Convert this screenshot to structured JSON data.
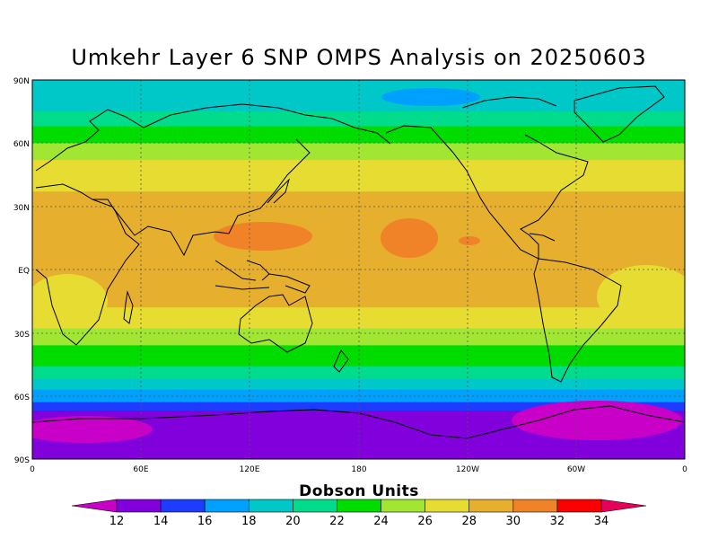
{
  "title": "Umkehr Layer 6 SNP OMPS Analysis on 20250603",
  "colorbar": {
    "title": "Dobson Units",
    "levels": [
      "12",
      "14",
      "16",
      "18",
      "20",
      "22",
      "24",
      "26",
      "28",
      "30",
      "32",
      "34"
    ],
    "colors": [
      "#c800c8",
      "#8200dc",
      "#1e3cff",
      "#00a0ff",
      "#00c8c8",
      "#00dc8c",
      "#00dc00",
      "#a0e632",
      "#e6dc32",
      "#e6af2d",
      "#f08228",
      "#fa0000",
      "#e6005a"
    ]
  },
  "latitude_labels": [
    "90N",
    "60N",
    "30N",
    "EQ",
    "30S",
    "60S",
    "90S"
  ],
  "longitude_labels": [
    "0",
    "60E",
    "120E",
    "180",
    "120W",
    "60W",
    "0"
  ],
  "bands": [
    {
      "lat": [
        90,
        75
      ],
      "color": "#00c8c8"
    },
    {
      "lat": [
        75,
        68
      ],
      "color": "#00dc8c"
    },
    {
      "lat": [
        68,
        60
      ],
      "color": "#00dc00"
    },
    {
      "lat": [
        60,
        52
      ],
      "color": "#a0e632"
    },
    {
      "lat": [
        52,
        37
      ],
      "color": "#e6dc32"
    },
    {
      "lat": [
        37,
        -18
      ],
      "color": "#e6af2d"
    },
    {
      "lat": [
        -18,
        -28
      ],
      "color": "#e6dc32"
    },
    {
      "lat": [
        -28,
        -36
      ],
      "color": "#a0e632"
    },
    {
      "lat": [
        -36,
        -46
      ],
      "color": "#00dc00"
    },
    {
      "lat": [
        -46,
        -52
      ],
      "color": "#00dc8c"
    },
    {
      "lat": [
        -52,
        -57
      ],
      "color": "#00c8c8"
    },
    {
      "lat": [
        -57,
        -63
      ],
      "color": "#00a0ff"
    },
    {
      "lat": [
        -63,
        -67
      ],
      "color": "#1e3cff"
    },
    {
      "lat": [
        -67,
        -90
      ],
      "color": "#8200dc"
    }
  ]
}
